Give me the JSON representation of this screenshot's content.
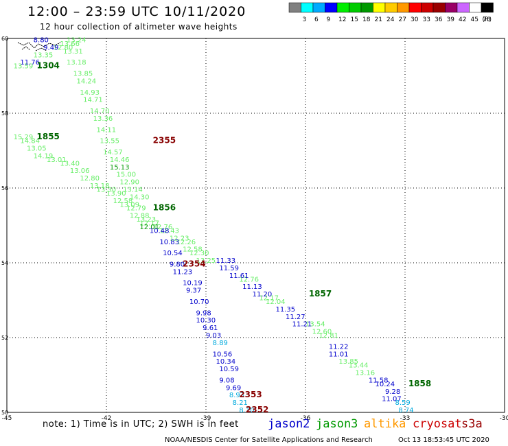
{
  "title": "12:00 – 23:59 UTC 10/11/2020",
  "subtitle": "12 hour collection of altimeter wave heights",
  "scale": {
    "unit": "(ft)",
    "bins": [
      {
        "label": "",
        "color": "#808080"
      },
      {
        "label": "3",
        "color": "#00ffff"
      },
      {
        "label": "6",
        "color": "#00aaff"
      },
      {
        "label": "9",
        "color": "#0000ff"
      },
      {
        "label": "12",
        "color": "#00ee00"
      },
      {
        "label": "15",
        "color": "#00cc00"
      },
      {
        "label": "18",
        "color": "#009900"
      },
      {
        "label": "21",
        "color": "#ffff00"
      },
      {
        "label": "24",
        "color": "#ffcc00"
      },
      {
        "label": "27",
        "color": "#ff9900"
      },
      {
        "label": "30",
        "color": "#ff0000"
      },
      {
        "label": "33",
        "color": "#cc0000"
      },
      {
        "label": "36",
        "color": "#990000"
      },
      {
        "label": "39",
        "color": "#990066"
      },
      {
        "label": "42",
        "color": "#cc66ff"
      },
      {
        "label": "45",
        "color": "#ffffff"
      },
      {
        "label": "70",
        "color": "#000000"
      }
    ]
  },
  "map": {
    "lon_range": [
      -45,
      -30
    ],
    "lat_range": [
      50,
      60
    ],
    "lon_ticks": [
      "-45",
      "-42",
      "-39",
      "-36",
      "-33",
      "-30"
    ],
    "lat_ticks": [
      "60",
      "58",
      "56",
      "54",
      "52",
      "50"
    ],
    "colors": {
      "light": "#66ee66",
      "mid": "#009900",
      "blue": "#0000cc",
      "cyan": "#00aadd",
      "time_green": "#006600",
      "time_red": "#880000"
    },
    "time_labels": [
      {
        "text": "1304",
        "lon": -44.1,
        "lat": 59.2,
        "color": "time_green"
      },
      {
        "text": "1855",
        "lon": -44.1,
        "lat": 57.3,
        "color": "time_green"
      },
      {
        "text": "2355",
        "lon": -40.6,
        "lat": 57.2,
        "color": "time_red"
      },
      {
        "text": "1856",
        "lon": -40.6,
        "lat": 55.4,
        "color": "time_green"
      },
      {
        "text": "2354",
        "lon": -39.7,
        "lat": 53.9,
        "color": "time_red"
      },
      {
        "text": "1857",
        "lon": -35.9,
        "lat": 53.1,
        "color": "time_green"
      },
      {
        "text": "1858",
        "lon": -32.9,
        "lat": 50.7,
        "color": "time_green"
      },
      {
        "text": "2353",
        "lon": -38.0,
        "lat": 50.4,
        "color": "time_red"
      },
      {
        "text": "2352",
        "lon": -37.8,
        "lat": 50.0,
        "color": "time_red"
      }
    ],
    "tracks": [
      {
        "color": "light",
        "points": [
          {
            "t": "13.24",
            "lon": -43.2,
            "lat": 59.9
          },
          {
            "t": "13.66",
            "lon": -43.4,
            "lat": 59.8
          },
          {
            "t": "12.80",
            "lon": -43.6,
            "lat": 59.7
          },
          {
            "t": "13.31",
            "lon": -43.3,
            "lat": 59.6
          },
          {
            "t": "13.18",
            "lon": -43.2,
            "lat": 59.3
          },
          {
            "t": "13.85",
            "lon": -43.0,
            "lat": 59.0
          },
          {
            "t": "14.24",
            "lon": -42.9,
            "lat": 58.8
          },
          {
            "t": "14.93",
            "lon": -42.8,
            "lat": 58.5
          },
          {
            "t": "14.71",
            "lon": -42.7,
            "lat": 58.3
          },
          {
            "t": "14.70",
            "lon": -42.5,
            "lat": 58.0
          },
          {
            "t": "13.36",
            "lon": -42.4,
            "lat": 57.8
          },
          {
            "t": "14.11",
            "lon": -42.3,
            "lat": 57.5
          },
          {
            "t": "13.55",
            "lon": -42.2,
            "lat": 57.2
          },
          {
            "t": "14.57",
            "lon": -42.1,
            "lat": 56.9
          },
          {
            "t": "14.46",
            "lon": -41.9,
            "lat": 56.7
          },
          {
            "t": "15.00",
            "lon": -41.7,
            "lat": 56.3
          },
          {
            "t": "12.90",
            "lon": -41.6,
            "lat": 56.1
          },
          {
            "t": "13.14",
            "lon": -41.5,
            "lat": 55.9
          },
          {
            "t": "14.30",
            "lon": -41.3,
            "lat": 55.7
          }
        ]
      },
      {
        "color": "mid",
        "points": [
          {
            "t": "15.13",
            "lon": -41.9,
            "lat": 56.5
          }
        ]
      },
      {
        "color": "light",
        "points": [
          {
            "t": "13.35",
            "lon": -44.2,
            "lat": 59.5
          },
          {
            "t": "13.59",
            "lon": -44.8,
            "lat": 59.2
          },
          {
            "t": "15.29",
            "lon": -44.8,
            "lat": 57.3
          },
          {
            "t": "14.84",
            "lon": -44.6,
            "lat": 57.2
          },
          {
            "t": "13.05",
            "lon": -44.4,
            "lat": 57.0
          },
          {
            "t": "14.19",
            "lon": -44.2,
            "lat": 56.8
          },
          {
            "t": "13.01",
            "lon": -43.8,
            "lat": 56.7
          },
          {
            "t": "13.40",
            "lon": -43.4,
            "lat": 56.6
          },
          {
            "t": "13.06",
            "lon": -43.1,
            "lat": 56.4
          },
          {
            "t": "12.80",
            "lon": -42.8,
            "lat": 56.2
          },
          {
            "t": "13.18",
            "lon": -42.5,
            "lat": 56.0
          },
          {
            "t": "13.30",
            "lon": -42.3,
            "lat": 55.9
          },
          {
            "t": "13.90",
            "lon": -42.0,
            "lat": 55.8
          },
          {
            "t": "12.58",
            "lon": -41.8,
            "lat": 55.6
          },
          {
            "t": "13.09",
            "lon": -41.6,
            "lat": 55.5
          },
          {
            "t": "12.79",
            "lon": -41.4,
            "lat": 55.4
          },
          {
            "t": "12.88",
            "lon": -41.3,
            "lat": 55.2
          },
          {
            "t": "13.23",
            "lon": -41.1,
            "lat": 55.1
          },
          {
            "t": "12.17",
            "lon": -41.0,
            "lat": 55.0
          },
          {
            "t": "12.76",
            "lon": -40.6,
            "lat": 54.9
          },
          {
            "t": "12.43",
            "lon": -40.4,
            "lat": 54.8
          },
          {
            "t": "12.23",
            "lon": -40.1,
            "lat": 54.6
          },
          {
            "t": "12.26",
            "lon": -39.9,
            "lat": 54.5
          },
          {
            "t": "12.58",
            "lon": -39.7,
            "lat": 54.3
          },
          {
            "t": "12.30",
            "lon": -39.5,
            "lat": 54.2
          },
          {
            "t": "13.25",
            "lon": -39.3,
            "lat": 54.0
          },
          {
            "t": "12.76",
            "lon": -38.0,
            "lat": 53.5
          },
          {
            "t": "12.17",
            "lon": -37.4,
            "lat": 53.0
          },
          {
            "t": "12.04",
            "lon": -37.2,
            "lat": 52.9
          },
          {
            "t": "13.54",
            "lon": -36.0,
            "lat": 52.3
          },
          {
            "t": "12.60",
            "lon": -35.8,
            "lat": 52.1
          },
          {
            "t": "12.81",
            "lon": -35.6,
            "lat": 52.0
          },
          {
            "t": "13.85",
            "lon": -35.0,
            "lat": 51.3
          },
          {
            "t": "13.44",
            "lon": -34.7,
            "lat": 51.2
          },
          {
            "t": "13.16",
            "lon": -34.5,
            "lat": 51.0
          }
        ]
      },
      {
        "color": "mid",
        "points": [
          {
            "t": "12.01",
            "lon": -41.0,
            "lat": 54.9
          }
        ]
      },
      {
        "color": "blue",
        "points": [
          {
            "t": "8.80",
            "lon": -44.2,
            "lat": 59.9
          },
          {
            "t": "9.49",
            "lon": -43.9,
            "lat": 59.7
          },
          {
            "t": "11.76",
            "lon": -44.6,
            "lat": 59.3
          },
          {
            "t": "10.48",
            "lon": -40.7,
            "lat": 54.8
          },
          {
            "t": "10.83",
            "lon": -40.4,
            "lat": 54.5
          },
          {
            "t": "10.54",
            "lon": -40.3,
            "lat": 54.2
          },
          {
            "t": "9.80",
            "lon": -40.1,
            "lat": 53.9
          },
          {
            "t": "11.23",
            "lon": -40.0,
            "lat": 53.7
          },
          {
            "t": "10.19",
            "lon": -39.7,
            "lat": 53.4
          },
          {
            "t": "9.37",
            "lon": -39.6,
            "lat": 53.2
          },
          {
            "t": "10.70",
            "lon": -39.5,
            "lat": 52.9
          },
          {
            "t": "9.98",
            "lon": -39.3,
            "lat": 52.6
          },
          {
            "t": "10.30",
            "lon": -39.3,
            "lat": 52.4
          },
          {
            "t": "9.61",
            "lon": -39.1,
            "lat": 52.2
          },
          {
            "t": "9.03",
            "lon": -39.0,
            "lat": 52.0
          },
          {
            "t": "10.56",
            "lon": -38.8,
            "lat": 51.5
          },
          {
            "t": "10.34",
            "lon": -38.7,
            "lat": 51.3
          },
          {
            "t": "10.59",
            "lon": -38.6,
            "lat": 51.1
          },
          {
            "t": "9.08",
            "lon": -38.6,
            "lat": 50.8
          },
          {
            "t": "9.69",
            "lon": -38.4,
            "lat": 50.6
          },
          {
            "t": "11.33",
            "lon": -38.7,
            "lat": 54.0
          },
          {
            "t": "11.59",
            "lon": -38.6,
            "lat": 53.8
          },
          {
            "t": "11.61",
            "lon": -38.3,
            "lat": 53.6
          },
          {
            "t": "11.13",
            "lon": -37.9,
            "lat": 53.3
          },
          {
            "t": "11.20",
            "lon": -37.6,
            "lat": 53.1
          },
          {
            "t": "11.35",
            "lon": -36.9,
            "lat": 52.7
          },
          {
            "t": "11.27",
            "lon": -36.6,
            "lat": 52.5
          },
          {
            "t": "11.21",
            "lon": -36.4,
            "lat": 52.3
          },
          {
            "t": "11.22",
            "lon": -35.3,
            "lat": 51.7
          },
          {
            "t": "11.01",
            "lon": -35.3,
            "lat": 51.5
          },
          {
            "t": "11.58",
            "lon": -34.1,
            "lat": 50.8
          },
          {
            "t": "10.24",
            "lon": -33.9,
            "lat": 50.7
          },
          {
            "t": "9.28",
            "lon": -33.6,
            "lat": 50.5
          },
          {
            "t": "11.07",
            "lon": -33.7,
            "lat": 50.3
          }
        ]
      },
      {
        "color": "cyan",
        "points": [
          {
            "t": "8.89",
            "lon": -38.8,
            "lat": 51.8
          },
          {
            "t": "8.93",
            "lon": -38.3,
            "lat": 50.4
          },
          {
            "t": "8.21",
            "lon": -38.2,
            "lat": 50.2
          },
          {
            "t": "8.10",
            "lon": -38.0,
            "lat": 50.0
          },
          {
            "t": "8.59",
            "lon": -33.3,
            "lat": 50.2
          },
          {
            "t": "8.74",
            "lon": -33.2,
            "lat": 50.0
          }
        ]
      }
    ]
  },
  "footer": {
    "note": "note: 1) Time is in UTC; 2) SWH is in feet",
    "satellites": {
      "jason2": "jason2",
      "jason3": "jason3",
      "altika": "altika",
      "cryosat": "cryosat",
      "s3a": "s3a"
    },
    "credit": "NOAA/NESDIS Center for Satellite Applications and Research",
    "timestamp": "Oct 13 18:53:45 UTC 2020"
  }
}
